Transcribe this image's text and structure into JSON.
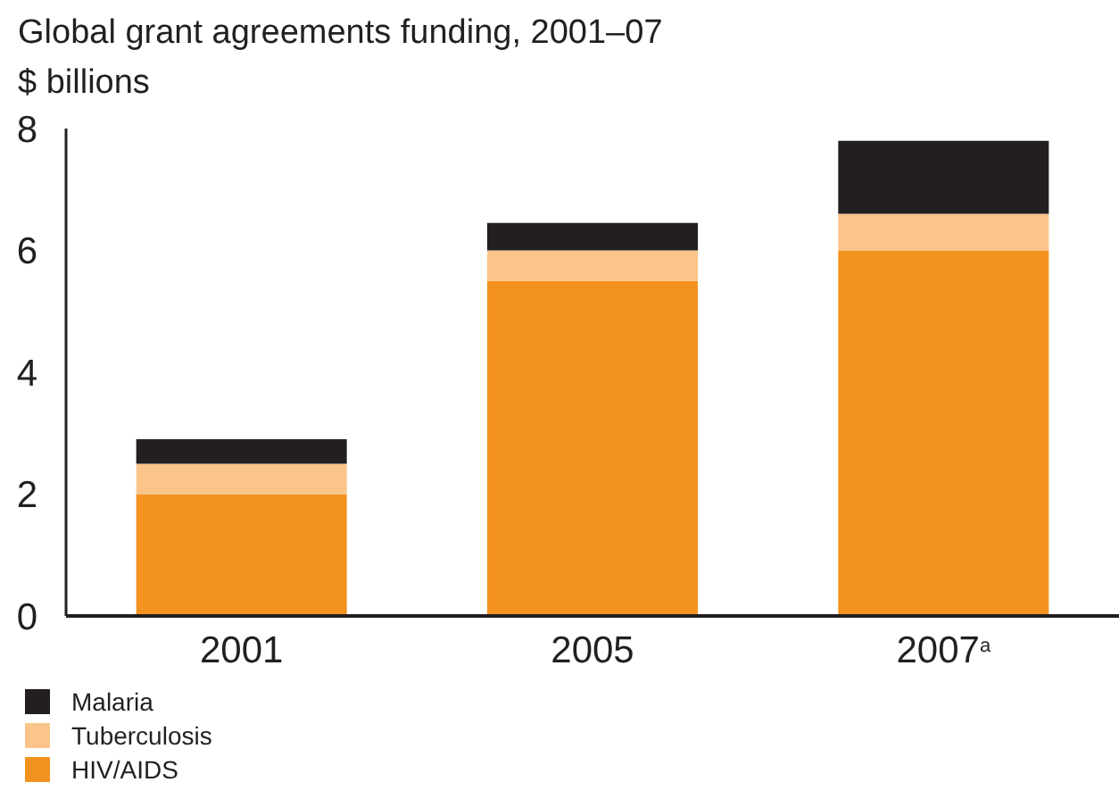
{
  "chart_data": {
    "type": "bar",
    "title": "Global grant agreements funding, 2001–07",
    "ylabel": "$ billions",
    "categories": [
      "2001",
      "2005",
      "2007$^{a}$"
    ],
    "stacked": true,
    "series": [
      {
        "name": "HIV/AIDS",
        "color": "#f3921f",
        "values": [
          2.0,
          5.5,
          6.0
        ]
      },
      {
        "name": "Tuberculosis",
        "color": "#fac48a",
        "values": [
          0.5,
          0.5,
          0.6
        ]
      },
      {
        "name": "Malaria",
        "color": "#231f20",
        "values": [
          0.4,
          0.45,
          1.2
        ]
      }
    ],
    "ylim": [
      0,
      8
    ],
    "yticks": [
      0,
      2,
      4,
      6,
      8
    ],
    "grid": false,
    "legend": "bottom left"
  }
}
